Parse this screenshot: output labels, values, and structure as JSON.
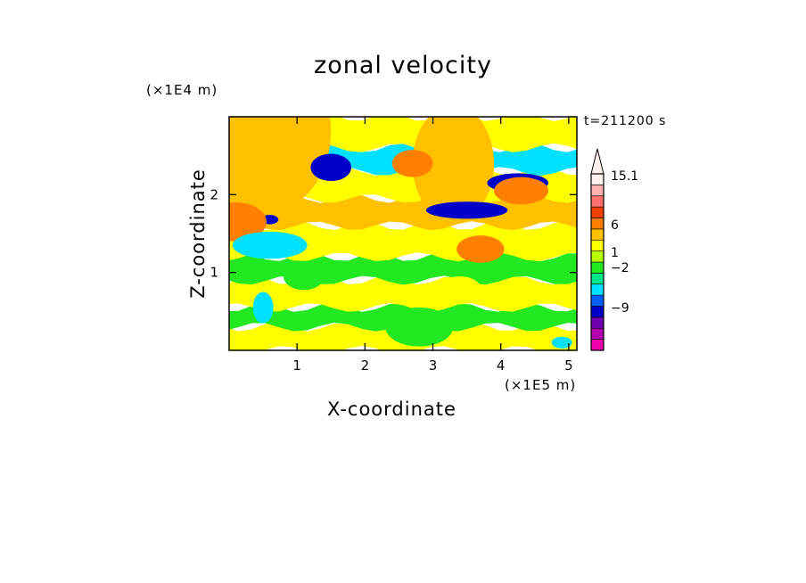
{
  "chart_data": {
    "type": "heatmap",
    "title": "zonal velocity",
    "xlabel": "X-coordinate",
    "ylabel": "Z-coordinate",
    "x_unit_label": "(×1E5 m)",
    "y_unit_label": "(×1E4 m)",
    "time_label": "t=211200 s",
    "xlim": [
      0,
      5.12
    ],
    "ylim": [
      0,
      3.0
    ],
    "x_ticks": [
      1,
      2,
      3,
      4,
      5
    ],
    "y_ticks": [
      1,
      2
    ],
    "colorbar": {
      "extend_max": true,
      "levels": [
        {
          "color": "#ee00aa"
        },
        {
          "color": "#b000b0"
        },
        {
          "color": "#7000b0"
        },
        {
          "color": "#0000c8"
        },
        {
          "color": "#0060ff"
        },
        {
          "color": "#00e0ff"
        },
        {
          "color": "#00e88a"
        },
        {
          "color": "#22e822"
        },
        {
          "color": "#b8ff00"
        },
        {
          "color": "#ffff00"
        },
        {
          "color": "#ffc000"
        },
        {
          "color": "#ff8000"
        },
        {
          "color": "#f04000"
        },
        {
          "color": "#ff7070"
        },
        {
          "color": "#ffb0b0"
        },
        {
          "color": "#fff0f0"
        }
      ],
      "tick_labels": [
        {
          "label": "15.1",
          "value": 15.1
        },
        {
          "label": "6",
          "value": 6
        },
        {
          "label": "1",
          "value": 1
        },
        {
          "label": "−2",
          "value": -2
        },
        {
          "label": "−9",
          "value": -9
        }
      ]
    },
    "field_bands": [
      {
        "z": [
          0.0,
          0.3
        ],
        "level": "#ffff00"
      },
      {
        "z": [
          0.3,
          0.55
        ],
        "level": "#22e822"
      },
      {
        "z": [
          0.55,
          0.9
        ],
        "level": "#ffff00"
      },
      {
        "z": [
          0.9,
          1.2
        ],
        "level": "#22e822"
      },
      {
        "z": [
          1.2,
          1.6
        ],
        "level": "#ffff00"
      },
      {
        "z": [
          1.6,
          1.95
        ],
        "level": "#ffc000"
      },
      {
        "z": [
          1.95,
          2.3
        ],
        "level": "#ffff00"
      },
      {
        "z": [
          2.3,
          2.6
        ],
        "level": "#00e0ff"
      },
      {
        "z": [
          2.6,
          3.0
        ],
        "level": "#ffff00"
      }
    ],
    "grid": false,
    "legend": "right colorbar"
  }
}
